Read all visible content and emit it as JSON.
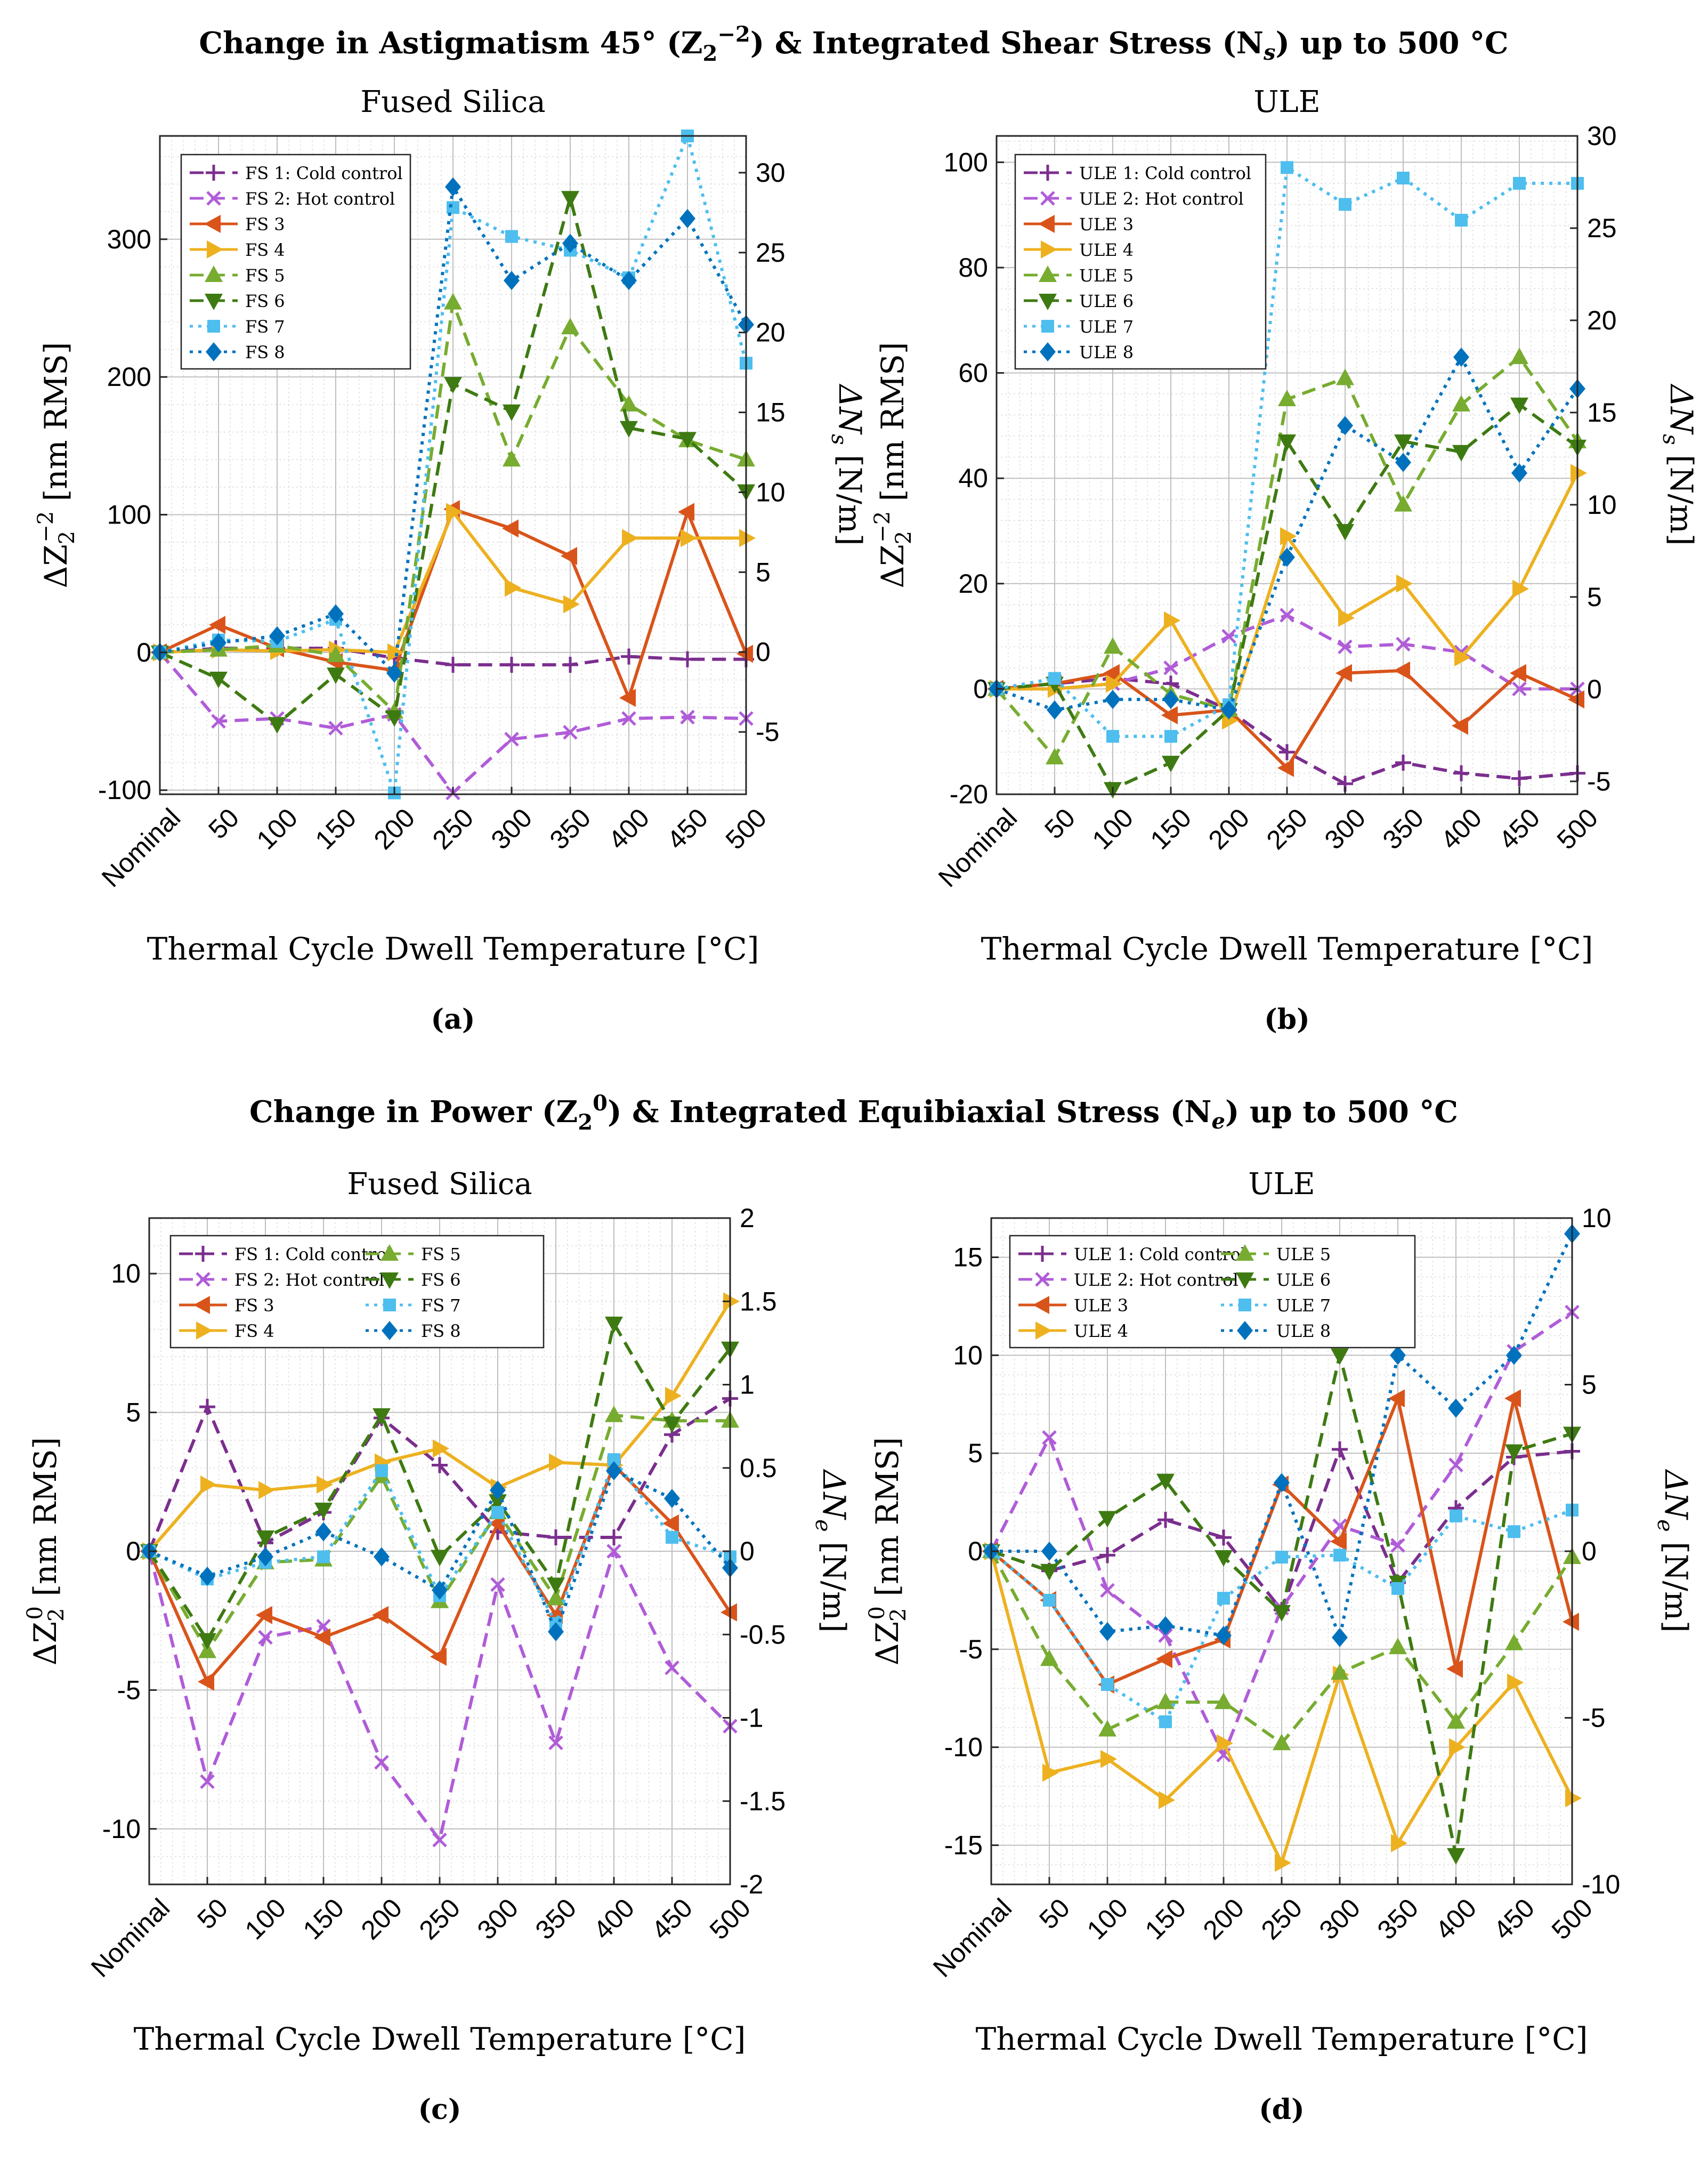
{
  "figure": {
    "top_title_1": {
      "pre": "Change in Astigmatism 45° (Z",
      "sub": "2",
      "sup": "−2",
      "post": ") & Integrated Shear Stress (N",
      "sub2": "s",
      "post2": ") up to 500 °C"
    },
    "top_title_2": {
      "pre": "Change in Power (Z",
      "sub": "2",
      "sup": "0",
      "post": ") & Integrated Equibiaxial Stress (N",
      "sub2": "e",
      "post2": ") up to 500 °C"
    }
  },
  "chart_data": [
    {
      "id": "a",
      "type": "line",
      "title": "Fused Silica",
      "caption": "(a)",
      "xlabel": "Thermal Cycle Dwell Temperature [°C]",
      "ylabel": {
        "pre": "ΔZ",
        "sub": "2",
        "sup": "−2",
        "post": " [nm RMS]"
      },
      "y2label": {
        "pre": "ΔN",
        "sub": "s",
        "post": " [N/m]"
      },
      "categories": [
        "Nominal",
        "50",
        "100",
        "150",
        "200",
        "250",
        "300",
        "350",
        "400",
        "450",
        "500"
      ],
      "ylim": [
        -103,
        375
      ],
      "yticks": [
        -100,
        0,
        100,
        200,
        300
      ],
      "yticklabels": [
        "-100",
        "0",
        "100",
        "200",
        "300"
      ],
      "y2lim": [
        -8.9,
        32.3
      ],
      "y2ticks": [
        -5,
        0,
        5,
        10,
        15,
        20,
        25,
        30
      ],
      "y2ticklabels": [
        "-5",
        "0",
        "5",
        "10",
        "15",
        "20",
        "25",
        "30"
      ],
      "legend_cols": 1,
      "series": [
        {
          "name": "FS 1: Cold control",
          "color": "#7B2E8E",
          "dash": "dashed",
          "marker": "plus",
          "values": [
            0,
            3,
            3,
            3,
            -4,
            -9,
            -9,
            -9,
            -3,
            -5,
            -5
          ]
        },
        {
          "name": "FS 2: Hot control",
          "color": "#B05CD8",
          "dash": "dashed",
          "marker": "x",
          "values": [
            0,
            -50,
            -48,
            -55,
            -45,
            -102,
            -63,
            -58,
            -48,
            -47,
            -48
          ]
        },
        {
          "name": "FS 3",
          "color": "#D9541A",
          "dash": "solid",
          "marker": "tri-left",
          "values": [
            0,
            20,
            3,
            -7,
            -13,
            104,
            90,
            70,
            -33,
            102,
            -1
          ]
        },
        {
          "name": "FS 4",
          "color": "#EDB120",
          "dash": "solid",
          "marker": "tri-right",
          "values": [
            0,
            2,
            1,
            2,
            0,
            102,
            47,
            35,
            83,
            83,
            83
          ]
        },
        {
          "name": "FS 5",
          "color": "#77AC30",
          "dash": "dashed",
          "marker": "tri-up",
          "values": [
            0,
            2,
            5,
            -2,
            -43,
            254,
            140,
            236,
            180,
            154,
            140
          ]
        },
        {
          "name": "FS 6",
          "color": "#3E7A12",
          "dash": "dashed",
          "marker": "tri-down",
          "values": [
            0,
            -19,
            -52,
            -16,
            -47,
            195,
            175,
            330,
            163,
            155,
            117
          ]
        },
        {
          "name": "FS 7",
          "color": "#4DBEEE",
          "dash": "dotted",
          "marker": "square",
          "values": [
            0,
            9,
            8,
            24,
            -102,
            323,
            302,
            292,
            272,
            375,
            210
          ]
        },
        {
          "name": "FS 8",
          "color": "#0072BD",
          "dash": "dotted",
          "marker": "diamond",
          "values": [
            0,
            7,
            12,
            28,
            -15,
            338,
            270,
            297,
            270,
            315,
            238
          ]
        }
      ]
    },
    {
      "id": "b",
      "type": "line",
      "title": "ULE",
      "caption": "(b)",
      "xlabel": "Thermal Cycle Dwell Temperature [°C]",
      "ylabel": {
        "pre": "ΔZ",
        "sub": "2",
        "sup": "−2",
        "post": " [nm RMS]"
      },
      "y2label": {
        "pre": "ΔN",
        "sub": "s",
        "post": " [N/m]"
      },
      "categories": [
        "Nominal",
        "50",
        "100",
        "150",
        "200",
        "250",
        "300",
        "350",
        "400",
        "450",
        "500"
      ],
      "ylim": [
        -20,
        105
      ],
      "yticks": [
        -20,
        0,
        20,
        40,
        60,
        80,
        100
      ],
      "yticklabels": [
        "-20",
        "0",
        "20",
        "40",
        "60",
        "80",
        "100"
      ],
      "y2lim": [
        -5.7,
        30
      ],
      "y2ticks": [
        -5,
        0,
        5,
        10,
        15,
        20,
        25,
        30
      ],
      "y2ticklabels": [
        "-5",
        "0",
        "5",
        "10",
        "15",
        "20",
        "25",
        "30"
      ],
      "legend_cols": 1,
      "series": [
        {
          "name": "ULE 1: Cold control",
          "color": "#7B2E8E",
          "dash": "dashed",
          "marker": "plus",
          "values": [
            0,
            1,
            2,
            1,
            -4,
            -12,
            -18,
            -14,
            -16,
            -17,
            -16
          ]
        },
        {
          "name": "ULE 2: Hot control",
          "color": "#B05CD8",
          "dash": "dashed",
          "marker": "x",
          "values": [
            0,
            0,
            1,
            4,
            10,
            14,
            8,
            8.5,
            7,
            0,
            0
          ]
        },
        {
          "name": "ULE 3",
          "color": "#D9541A",
          "dash": "solid",
          "marker": "tri-left",
          "values": [
            0,
            1,
            3,
            -5,
            -4,
            -15,
            3,
            3.5,
            -7,
            3,
            -2
          ]
        },
        {
          "name": "ULE 4",
          "color": "#EDB120",
          "dash": "solid",
          "marker": "tri-right",
          "values": [
            0,
            0,
            1,
            13,
            -6,
            29,
            13.5,
            20,
            6,
            19,
            41
          ]
        },
        {
          "name": "ULE 5",
          "color": "#77AC30",
          "dash": "dashed",
          "marker": "tri-up",
          "values": [
            0,
            -13,
            8,
            -1,
            -4,
            55,
            59,
            35,
            54,
            63,
            47
          ]
        },
        {
          "name": "ULE 6",
          "color": "#3E7A12",
          "dash": "dashed",
          "marker": "tri-down",
          "values": [
            0,
            1,
            -19,
            -14,
            -4,
            47,
            30,
            47,
            45,
            54,
            46
          ]
        },
        {
          "name": "ULE 7",
          "color": "#4DBEEE",
          "dash": "dotted",
          "marker": "square",
          "values": [
            0,
            2,
            -9,
            -9,
            -3,
            99,
            92,
            97,
            89,
            96,
            96
          ]
        },
        {
          "name": "ULE 8",
          "color": "#0072BD",
          "dash": "dotted",
          "marker": "diamond",
          "values": [
            0,
            -4,
            -2,
            -2,
            -4,
            25,
            50,
            43,
            63,
            41,
            57
          ]
        }
      ]
    },
    {
      "id": "c",
      "type": "line",
      "title": "Fused Silica",
      "caption": "(c)",
      "xlabel": "Thermal Cycle Dwell Temperature [°C]",
      "ylabel": {
        "pre": "ΔZ",
        "sub": "2",
        "sup": "0",
        "post": " [nm RMS]"
      },
      "y2label": {
        "pre": "ΔN",
        "sub": "e",
        "post": " [N/m]"
      },
      "categories": [
        "Nominal",
        "50",
        "100",
        "150",
        "200",
        "250",
        "300",
        "350",
        "400",
        "450",
        "500"
      ],
      "ylim": [
        -12,
        12
      ],
      "yticks": [
        -10,
        -5,
        0,
        5,
        10
      ],
      "yticklabels": [
        "-10",
        "-5",
        "0",
        "5",
        "10"
      ],
      "y2lim": [
        -2,
        2
      ],
      "y2ticks": [
        -2,
        -1.5,
        -1,
        -0.5,
        0,
        0.5,
        1,
        1.5,
        2
      ],
      "y2ticklabels": [
        "-2",
        "-1.5",
        "-1",
        "-0.5",
        "0",
        "0.5",
        "1",
        "1.5",
        "2"
      ],
      "legend_cols": 2,
      "series": [
        {
          "name": "FS 1: Cold control",
          "color": "#7B2E8E",
          "dash": "dashed",
          "marker": "plus",
          "values": [
            0,
            5.2,
            0.3,
            1.4,
            4.8,
            3.1,
            0.7,
            0.5,
            0.5,
            4.2,
            5.5
          ]
        },
        {
          "name": "FS 2: Hot control",
          "color": "#B05CD8",
          "dash": "dashed",
          "marker": "x",
          "values": [
            0,
            -8.3,
            -3.1,
            -2.7,
            -7.6,
            -10.4,
            -1.2,
            -6.9,
            0,
            -4.2,
            -6.3
          ]
        },
        {
          "name": "FS 3",
          "color": "#D9541A",
          "dash": "solid",
          "marker": "tri-left",
          "values": [
            0,
            -4.7,
            -2.3,
            -3.1,
            -2.3,
            -3.8,
            1,
            -2.3,
            3.1,
            1,
            -2.2
          ]
        },
        {
          "name": "FS 4",
          "color": "#EDB120",
          "dash": "solid",
          "marker": "tri-right",
          "values": [
            0,
            2.4,
            2.2,
            2.4,
            3.2,
            3.7,
            2.3,
            3.2,
            3.1,
            5.6,
            9
          ]
        },
        {
          "name": "FS 5",
          "color": "#77AC30",
          "dash": "dashed",
          "marker": "tri-up",
          "values": [
            0,
            -3.6,
            -0.4,
            -0.3,
            2.7,
            -1.8,
            1.4,
            -1.7,
            4.9,
            4.7,
            4.7
          ]
        },
        {
          "name": "FS 6",
          "color": "#3E7A12",
          "dash": "dashed",
          "marker": "tri-down",
          "values": [
            0,
            -3.2,
            0.5,
            1.5,
            4.9,
            -0.2,
            1.8,
            -1.2,
            8.2,
            4.6,
            7.3
          ]
        },
        {
          "name": "FS 7",
          "color": "#4DBEEE",
          "dash": "dotted",
          "marker": "square",
          "values": [
            0,
            -1,
            -0.4,
            -0.2,
            2.9,
            -1.6,
            1.4,
            -2.6,
            3.3,
            0.5,
            -0.2
          ]
        },
        {
          "name": "FS 8",
          "color": "#0072BD",
          "dash": "dotted",
          "marker": "diamond",
          "values": [
            0,
            -0.9,
            -0.2,
            0.7,
            -0.2,
            -1.4,
            2.2,
            -2.9,
            2.9,
            1.9,
            -0.6
          ]
        }
      ]
    },
    {
      "id": "d",
      "type": "line",
      "title": "ULE",
      "caption": "(d)",
      "xlabel": "Thermal Cycle Dwell Temperature [°C]",
      "ylabel": {
        "pre": "ΔZ",
        "sub": "2",
        "sup": "0",
        "post": " [nm RMS]"
      },
      "y2label": {
        "pre": "ΔN",
        "sub": "e",
        "post": " [N/m]"
      },
      "categories": [
        "Nominal",
        "50",
        "100",
        "150",
        "200",
        "250",
        "300",
        "350",
        "400",
        "450",
        "500"
      ],
      "ylim": [
        -17,
        17
      ],
      "yticks": [
        -15,
        -10,
        -5,
        0,
        5,
        10,
        15
      ],
      "yticklabels": [
        "-15",
        "-10",
        "-5",
        "0",
        "5",
        "10",
        "15"
      ],
      "y2lim": [
        -10,
        10
      ],
      "y2ticks": [
        -10,
        -5,
        0,
        5,
        10
      ],
      "y2ticklabels": [
        "-10",
        "-5",
        "0",
        "5",
        "10"
      ],
      "legend_cols": 2,
      "series": [
        {
          "name": "ULE 1: Cold control",
          "color": "#7B2E8E",
          "dash": "dashed",
          "marker": "plus",
          "values": [
            0,
            -1,
            -0.2,
            1.6,
            0.7,
            -3,
            5.2,
            -1.6,
            2.2,
            4.8,
            5.1
          ]
        },
        {
          "name": "ULE 2: Hot control",
          "color": "#B05CD8",
          "dash": "dashed",
          "marker": "x",
          "values": [
            0,
            5.8,
            -2,
            -4.3,
            -10.4,
            -2.9,
            1.3,
            0.3,
            4.4,
            10.2,
            12.2
          ]
        },
        {
          "name": "ULE 3",
          "color": "#D9541A",
          "dash": "solid",
          "marker": "tri-left",
          "values": [
            0,
            -2.5,
            -6.8,
            -5.5,
            -4.5,
            3.4,
            0.5,
            7.8,
            -6,
            7.8,
            -3.6
          ]
        },
        {
          "name": "ULE 4",
          "color": "#EDB120",
          "dash": "solid",
          "marker": "tri-right",
          "values": [
            0,
            -11.3,
            -10.6,
            -12.7,
            -9.8,
            -15.9,
            -6.3,
            -14.9,
            -10,
            -6.7,
            -12.6
          ]
        },
        {
          "name": "ULE 5",
          "color": "#77AC30",
          "dash": "dashed",
          "marker": "tri-up",
          "values": [
            0,
            -5.5,
            -9.1,
            -7.7,
            -7.7,
            -9.8,
            -6.2,
            -4.9,
            -8.7,
            -4.7,
            -0.3
          ]
        },
        {
          "name": "ULE 6",
          "color": "#3E7A12",
          "dash": "dashed",
          "marker": "tri-down",
          "values": [
            0,
            -1,
            1.7,
            3.6,
            -0.3,
            -3.1,
            10,
            -1.6,
            -15.5,
            5.1,
            6
          ]
        },
        {
          "name": "ULE 7",
          "color": "#4DBEEE",
          "dash": "dotted",
          "marker": "square",
          "values": [
            0,
            -2.5,
            -6.8,
            -8.7,
            -2.4,
            -0.3,
            -0.2,
            -1.9,
            1.8,
            1,
            2.1
          ]
        },
        {
          "name": "ULE 8",
          "color": "#0072BD",
          "dash": "dotted",
          "marker": "diamond",
          "values": [
            0,
            0,
            -4.1,
            -3.8,
            -4.3,
            3.5,
            -4.4,
            10,
            7.3,
            10,
            16.2
          ]
        }
      ]
    }
  ]
}
